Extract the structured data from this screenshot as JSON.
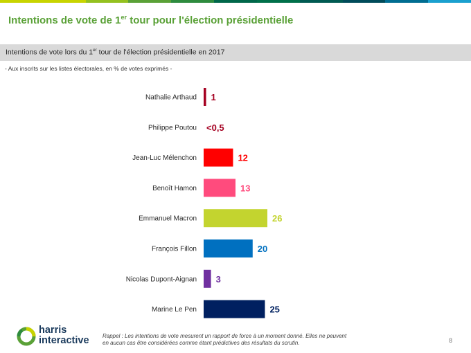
{
  "header": {
    "band_colors": [
      "#c8d400",
      "#c8d400",
      "#94c11f",
      "#5aa137",
      "#2e8b3e",
      "#00674a",
      "#00704a",
      "#005a52",
      "#004b5a",
      "#006d91",
      "#1aa0cf"
    ],
    "title_pre": "Intentions de vote de 1",
    "title_sup": "er",
    "title_post": " tour pour l'élection présidentielle"
  },
  "subtitle": {
    "pre": "Intentions de vote lors du 1",
    "sup": "er",
    "post": " tour de l'élection présidentielle en 2017"
  },
  "note": "- Aux inscrits sur les listes électorales, en % de votes exprimés -",
  "chart_data": {
    "type": "bar",
    "orientation": "horizontal",
    "categories": [
      "Nathalie Arthaud",
      "Philippe Poutou",
      "Jean-Luc Mélenchon",
      "Benoît Hamon",
      "Emmanuel Macron",
      "François Fillon",
      "Nicolas Dupont-Aignan",
      "Marine Le Pen"
    ],
    "values": [
      1,
      0.3,
      12,
      13,
      26,
      20,
      3,
      25
    ],
    "value_labels": [
      "1",
      "<0,5",
      "12",
      "13",
      "26",
      "20",
      "3",
      "25"
    ],
    "colors": [
      "#a50021",
      "#a50021",
      "#ff0000",
      "#ff4b7d",
      "#c3d42f",
      "#0070c0",
      "#7030a0",
      "#002060"
    ],
    "xlim": [
      0,
      30
    ]
  },
  "footer": {
    "logo_line1": "harris",
    "logo_line2": "interactive",
    "footnote": "Rappel : Les intentions de vote mesurent un rapport de force à un moment donné. Elles ne peuvent en aucun cas être considérées comme étant prédictives des résultats du scrutin.",
    "page_number": "8"
  }
}
